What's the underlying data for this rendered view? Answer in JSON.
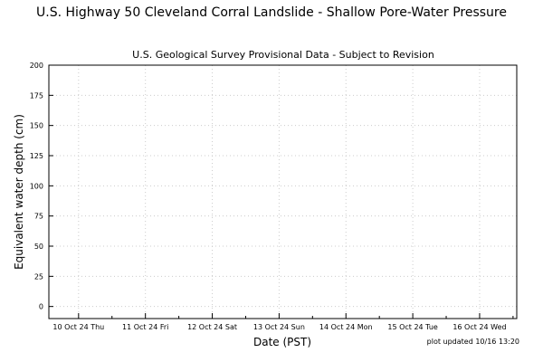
{
  "chart_data": {
    "type": "line",
    "title": "U.S. Highway 50 Cleveland Corral Landslide - Shallow Pore-Water Pressure",
    "subtitle": "U.S. Geological Survey Provisional Data - Subject to Revision",
    "xlabel": "Date (PST)",
    "ylabel": "Equivalent water depth (cm)",
    "ylim": [
      -10,
      200
    ],
    "yticks": [
      0,
      25,
      50,
      75,
      100,
      125,
      150,
      175,
      200
    ],
    "xlim": [
      "2024-10-09T13:20",
      "2024-10-16T13:20"
    ],
    "xticks": [
      {
        "date": "2024-10-10",
        "label": "10 Oct 24 Thu"
      },
      {
        "date": "2024-10-11",
        "label": "11 Oct 24 Fri"
      },
      {
        "date": "2024-10-12",
        "label": "12 Oct 24 Sat"
      },
      {
        "date": "2024-10-13",
        "label": "13 Oct 24 Sun"
      },
      {
        "date": "2024-10-14",
        "label": "14 Oct 24 Mon"
      },
      {
        "date": "2024-10-15",
        "label": "15 Oct 24 Tue"
      },
      {
        "date": "2024-10-16",
        "label": "16 Oct 24 Wed"
      }
    ],
    "grid": true,
    "series": []
  },
  "footer": {
    "updated": "plot updated 10/16 13:20"
  }
}
